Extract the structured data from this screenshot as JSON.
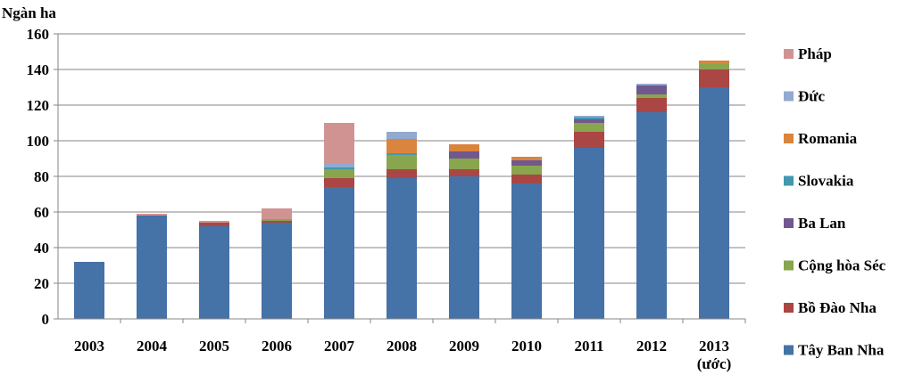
{
  "chart_data": {
    "type": "bar",
    "stacked": true,
    "ylabel": "Ngàn ha",
    "ylim": [
      0,
      160
    ],
    "yticks": [
      0,
      20,
      40,
      60,
      80,
      100,
      120,
      140,
      160
    ],
    "grid": true,
    "legend_position": "right",
    "categories": [
      "2003",
      "2004",
      "2005",
      "2006",
      "2007",
      "2008",
      "2009",
      "2010",
      "2011",
      "2012",
      "2013\n(ước)"
    ],
    "series": [
      {
        "name": "Tây Ban Nha",
        "color": "#4572A7",
        "values": [
          32,
          58,
          52,
          54,
          74,
          79,
          80,
          76,
          96,
          116,
          130
        ]
      },
      {
        "name": "Bồ Đào Nha",
        "color": "#AA4643",
        "values": [
          0,
          0,
          2,
          1,
          5,
          5,
          4,
          5,
          9,
          8,
          10
        ]
      },
      {
        "name": "Cộng hòa Séc",
        "color": "#89A54E",
        "values": [
          0,
          0,
          0,
          1,
          5,
          8,
          6,
          5,
          5,
          2,
          3
        ]
      },
      {
        "name": "Ba Lan",
        "color": "#71588F",
        "values": [
          0,
          0,
          0,
          0,
          0,
          0,
          4,
          3,
          2,
          5,
          0
        ]
      },
      {
        "name": "Slovakia",
        "color": "#4198AF",
        "values": [
          0,
          0,
          0,
          0,
          1,
          1,
          0,
          0,
          1,
          0,
          0
        ]
      },
      {
        "name": "Romania",
        "color": "#DB843D",
        "values": [
          0,
          0,
          0,
          0,
          0,
          8,
          4,
          2,
          0,
          0,
          2
        ]
      },
      {
        "name": "Đức",
        "color": "#93A9CF",
        "values": [
          0,
          0,
          0,
          0,
          2,
          4,
          0,
          0,
          1,
          1,
          0
        ]
      },
      {
        "name": "Pháp",
        "color": "#D19392",
        "values": [
          0,
          1,
          1,
          6,
          23,
          0,
          0,
          0,
          0,
          0,
          0
        ]
      }
    ],
    "legend_order": [
      "Pháp",
      "Đức",
      "Romania",
      "Slovakia",
      "Ba Lan",
      "Cộng hòa Séc",
      "Bồ Đào Nha",
      "Tây Ban Nha"
    ]
  }
}
